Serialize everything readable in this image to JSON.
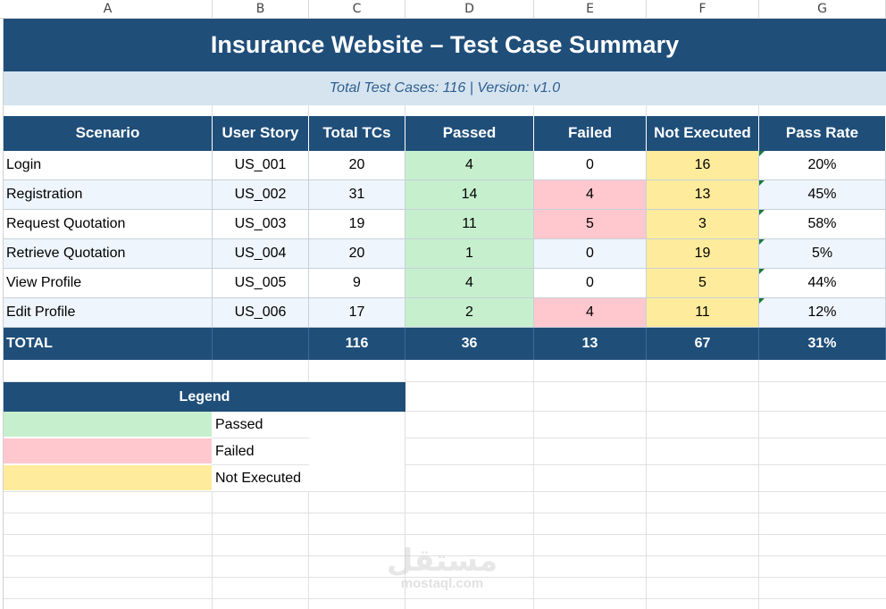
{
  "columns": [
    "A",
    "B",
    "C",
    "D",
    "E",
    "F",
    "G"
  ],
  "title": "Insurance Website – Test Case Summary",
  "subtitle": "Total Test Cases: 116  |  Version: v1.0",
  "headers": [
    "Scenario",
    "User Story",
    "Total TCs",
    "Passed",
    "Failed",
    "Not Executed",
    "Pass Rate"
  ],
  "rows": [
    {
      "scenario": "Login",
      "story": "US_001",
      "total": "20",
      "passed": "4",
      "failed": "0",
      "not_executed": "16",
      "pass_rate": "20%"
    },
    {
      "scenario": "Registration",
      "story": "US_002",
      "total": "31",
      "passed": "14",
      "failed": "4",
      "not_executed": "13",
      "pass_rate": "45%"
    },
    {
      "scenario": "Request Quotation",
      "story": "US_003",
      "total": "19",
      "passed": "11",
      "failed": "5",
      "not_executed": "3",
      "pass_rate": "58%"
    },
    {
      "scenario": "Retrieve Quotation",
      "story": "US_004",
      "total": "20",
      "passed": "1",
      "failed": "0",
      "not_executed": "19",
      "pass_rate": "5%"
    },
    {
      "scenario": "View Profile",
      "story": "US_005",
      "total": "9",
      "passed": "4",
      "failed": "0",
      "not_executed": "5",
      "pass_rate": "44%"
    },
    {
      "scenario": "Edit Profile",
      "story": "US_006",
      "total": "17",
      "passed": "2",
      "failed": "4",
      "not_executed": "11",
      "pass_rate": "12%"
    }
  ],
  "total_row": {
    "label": "TOTAL",
    "story": "",
    "total": "116",
    "passed": "36",
    "failed": "13",
    "not_executed": "67",
    "pass_rate": "31%"
  },
  "legend": {
    "title": "Legend",
    "items": [
      {
        "label": "Passed",
        "color": "#c6efce"
      },
      {
        "label": "Failed",
        "color": "#ffc7ce"
      },
      {
        "label": "Not Executed",
        "color": "#ffeb9c"
      }
    ]
  },
  "colors": {
    "header": "#1f4e79",
    "passed": "#c6efce",
    "failed": "#ffc7ce",
    "not_executed": "#ffeb9c"
  },
  "watermark": {
    "arabic": "مستقل",
    "latin": "mostaql.com"
  }
}
